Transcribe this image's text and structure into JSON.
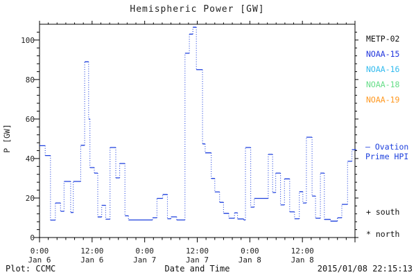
{
  "title": "Hemispheric Power [GW]",
  "legend": {
    "satellites": [
      {
        "label": "METP-02",
        "color": "#111111"
      },
      {
        "label": "NOAA-15",
        "color": "#2236dd"
      },
      {
        "label": "NOAA-16",
        "color": "#33bbee"
      },
      {
        "label": "NOAA-18",
        "color": "#66dd88"
      },
      {
        "label": "NOAA-19",
        "color": "#ff9922"
      }
    ],
    "series": {
      "dash": "—",
      "line1": "Ovation",
      "line2": "Prime HPI",
      "color": "#1c3fdd"
    },
    "south_marker": "+ south",
    "north_marker": "* north"
  },
  "footer": {
    "credit": "Plot: CCMC",
    "xlabel": "Date and Time",
    "timestamp": "2015/01/08 22:15:13"
  },
  "chart_data": {
    "type": "line",
    "style": "step, solid horizontal dashes joined by dotted verticals",
    "title": "Hemispheric Power [GW]",
    "xlabel": "Date and Time",
    "ylabel": "P [GW]",
    "ylim": [
      0,
      108
    ],
    "yticks": [
      0,
      20,
      40,
      60,
      80,
      100
    ],
    "y_minor_step": 4,
    "x_hours_total": 72,
    "x_minor_step_hours": 2,
    "x_major_step_hours": 12,
    "xticks": [
      {
        "hour": 0,
        "time": "0:00",
        "date": "Jan 6"
      },
      {
        "hour": 12,
        "time": "12:00",
        "date": "Jan 6"
      },
      {
        "hour": 24,
        "time": "0:00",
        "date": "Jan 7"
      },
      {
        "hour": 36,
        "time": "12:00",
        "date": "Jan 7"
      },
      {
        "hour": 48,
        "time": "0:00",
        "date": "Jan 8"
      },
      {
        "hour": 60,
        "time": "12:00",
        "date": "Jan 8"
      }
    ],
    "line_color": "#1c3fdd",
    "series": [
      {
        "name": "Ovation Prime HPI",
        "end_hour": 72,
        "steps_hour_value": [
          [
            0,
            46.5
          ],
          [
            1.3,
            41.5
          ],
          [
            2.5,
            8.8
          ],
          [
            3.6,
            17.5
          ],
          [
            4.8,
            13.3
          ],
          [
            5.6,
            28.4
          ],
          [
            7.1,
            12.7
          ],
          [
            7.7,
            28.4
          ],
          [
            9.4,
            46.7
          ],
          [
            10.3,
            89
          ],
          [
            11.2,
            60
          ],
          [
            11.5,
            35.4
          ],
          [
            12.5,
            32.6
          ],
          [
            13.3,
            10.4
          ],
          [
            14.2,
            16.3
          ],
          [
            15.1,
            9.3
          ],
          [
            16.1,
            45.6
          ],
          [
            17.4,
            30.2
          ],
          [
            18.3,
            37.5
          ],
          [
            19.5,
            11
          ],
          [
            20.3,
            8.9
          ],
          [
            25.8,
            10
          ],
          [
            26.8,
            19.8
          ],
          [
            28.1,
            21.8
          ],
          [
            29.2,
            9.5
          ],
          [
            30,
            10.5
          ],
          [
            31.3,
            8.9
          ],
          [
            33.2,
            93.3
          ],
          [
            34.2,
            103
          ],
          [
            35,
            106.5
          ],
          [
            35.8,
            85
          ],
          [
            37.2,
            47.4
          ],
          [
            37.8,
            42.9
          ],
          [
            39.2,
            29.9
          ],
          [
            40,
            23.1
          ],
          [
            41.1,
            17.8
          ],
          [
            42,
            12.2
          ],
          [
            43.2,
            9.8
          ],
          [
            44.5,
            12.5
          ],
          [
            45.2,
            9.4
          ],
          [
            46.6,
            8.9
          ],
          [
            47,
            45.6
          ],
          [
            48.2,
            15.4
          ],
          [
            49,
            19.8
          ],
          [
            52.2,
            42.1
          ],
          [
            53.2,
            22.8
          ],
          [
            53.9,
            32.6
          ],
          [
            55,
            16.5
          ],
          [
            55.9,
            29.7
          ],
          [
            57.1,
            13
          ],
          [
            58.2,
            9.5
          ],
          [
            59.3,
            23.2
          ],
          [
            60.1,
            17.5
          ],
          [
            60.9,
            50.8
          ],
          [
            62.2,
            21
          ],
          [
            63,
            9.8
          ],
          [
            64.1,
            32.6
          ],
          [
            65,
            9.2
          ],
          [
            66.4,
            8.3
          ],
          [
            68,
            10
          ],
          [
            69,
            16.8
          ],
          [
            70.3,
            38.6
          ],
          [
            71.3,
            44.5
          ]
        ]
      }
    ]
  }
}
